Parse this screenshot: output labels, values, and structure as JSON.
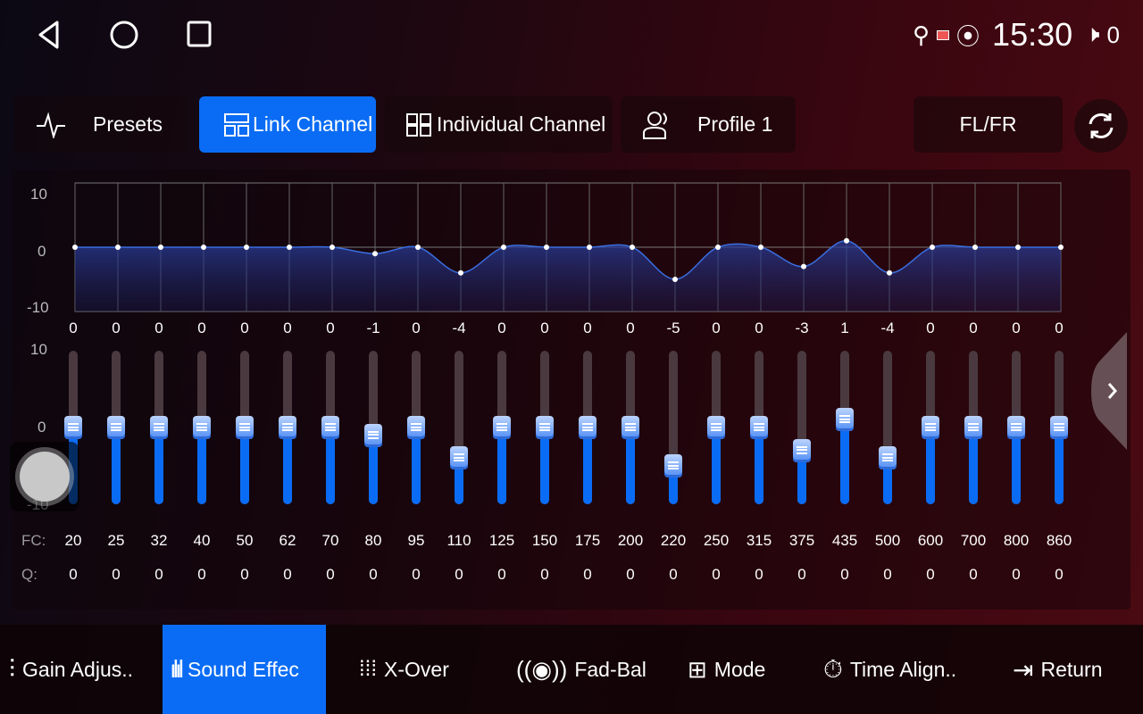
{
  "status": {
    "time": "15:30",
    "volume": "0",
    "icons": [
      "usb-icon",
      "cast-icon",
      "location-icon",
      "volume-mute-icon"
    ]
  },
  "nav": {
    "icons": [
      "back-icon",
      "home-icon",
      "recents-icon"
    ]
  },
  "tabs": {
    "presets": "Presets",
    "link_channel": "Link Channel",
    "individual_channel": "Individual Channel",
    "profile": "Profile 1",
    "channel": "FL/FR",
    "active": "Link Channel"
  },
  "graph": {
    "y_ticks": [
      "10",
      "0",
      "-10"
    ],
    "ylim": [
      -10,
      10
    ]
  },
  "slider_scale": {
    "top": "10",
    "mid": "0",
    "bottom": "-10"
  },
  "bands": {
    "gains": [
      0,
      0,
      0,
      0,
      0,
      0,
      0,
      -1,
      0,
      -4,
      0,
      0,
      0,
      0,
      -5,
      0,
      0,
      -3,
      1,
      -4,
      0,
      0,
      0,
      0
    ],
    "fc_label": "FC:",
    "q_label": "Q:",
    "fc": [
      "20",
      "25",
      "32",
      "40",
      "50",
      "62",
      "70",
      "80",
      "95",
      "110",
      "125",
      "150",
      "175",
      "200",
      "220",
      "250",
      "315",
      "375",
      "435",
      "500",
      "600",
      "700",
      "800",
      "860"
    ],
    "q": [
      "0",
      "0",
      "0",
      "0",
      "0",
      "0",
      "0",
      "0",
      "0",
      "0",
      "0",
      "0",
      "0",
      "0",
      "0",
      "0",
      "0",
      "0",
      "0",
      "0",
      "0",
      "0",
      "0",
      "0"
    ]
  },
  "bottom_nav": [
    {
      "label": "Gain Adjus..",
      "icon": "sliders-icon"
    },
    {
      "label": "Sound Effec",
      "icon": "waveform-icon",
      "active": true
    },
    {
      "label": "X-Over",
      "icon": "bars-icon"
    },
    {
      "label": "Fad-Bal",
      "icon": "speaker-icon"
    },
    {
      "label": "Mode",
      "icon": "mode-icon"
    },
    {
      "label": "Time Align..",
      "icon": "timer-icon"
    },
    {
      "label": "Return",
      "icon": "return-icon"
    }
  ],
  "colors": {
    "accent": "#0a6cf5",
    "track": "#4a3a40"
  }
}
